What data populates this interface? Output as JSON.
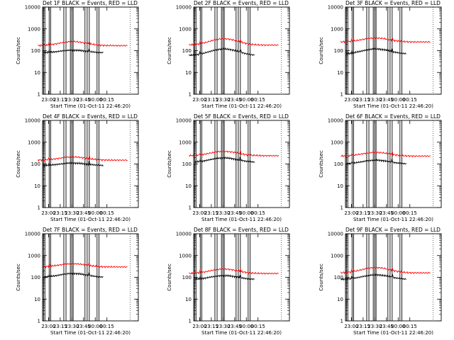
{
  "figure": {
    "colors": {
      "background": "#ffffff",
      "events": "#000000",
      "lld": "#ff0000",
      "axis": "#000000"
    }
  },
  "chart_data": [
    {
      "type": "line",
      "title": "Det 1F BLACK = Events, RED = LLD",
      "ylabel": "Counts/sec",
      "xlabel": "Start Time (01-Oct-11 22:46:20)",
      "x_ticks": [
        "23:00",
        "23:15",
        "23:30",
        "23:45",
        "00:00",
        "00:15"
      ],
      "y_ticks": [
        "1",
        "10",
        "100",
        "1000",
        "10000"
      ],
      "y_scale": "log",
      "ylim": [
        1,
        10000
      ],
      "grid": false,
      "series": [
        {
          "name": "Events",
          "color": "#000000",
          "start_min": 7.5,
          "end_min": 84,
          "base": 80,
          "peak": 105
        },
        {
          "name": "LLD",
          "color": "#ff0000",
          "start_min": 0,
          "end_min": 115,
          "base": 170,
          "peak": 260
        }
      ]
    },
    {
      "type": "line",
      "title": "Det 2F BLACK = Events, RED = LLD",
      "ylabel": "Counts/sec",
      "xlabel": "Start Time (01-Oct-11 22:46:20)",
      "x_ticks": [
        "23:00",
        "23:15",
        "23:30",
        "23:45",
        "00:00",
        "00:15"
      ],
      "y_ticks": [
        "1",
        "10",
        "100",
        "1000",
        "10000"
      ],
      "y_scale": "log",
      "ylim": [
        1,
        10000
      ],
      "grid": false,
      "series": [
        {
          "name": "Events",
          "color": "#000000",
          "start_min": 0,
          "end_min": 84,
          "base": 60,
          "peak": 120
        },
        {
          "name": "LLD",
          "color": "#ff0000",
          "start_min": 0,
          "end_min": 115,
          "base": 180,
          "peak": 350
        }
      ]
    },
    {
      "type": "line",
      "title": "Det 3F BLACK = Events, RED = LLD",
      "ylabel": "Counts/sec",
      "xlabel": "Start Time (01-Oct-11 22:46:20)",
      "x_ticks": [
        "23:00",
        "23:15",
        "23:30",
        "23:45",
        "00:00",
        "00:15"
      ],
      "y_ticks": [
        "1",
        "10",
        "100",
        "1000",
        "10000"
      ],
      "y_scale": "log",
      "ylim": [
        1,
        10000
      ],
      "grid": false,
      "series": [
        {
          "name": "Events",
          "color": "#000000",
          "start_min": 7.5,
          "end_min": 84,
          "base": 70,
          "peak": 120
        },
        {
          "name": "LLD",
          "color": "#ff0000",
          "start_min": 0,
          "end_min": 115,
          "base": 250,
          "peak": 380
        }
      ]
    },
    {
      "type": "line",
      "title": "Det 4F BLACK = Events, RED = LLD",
      "ylabel": "Counts/sec",
      "xlabel": "Start Time (01-Oct-11 22:46:20)",
      "x_ticks": [
        "23:00",
        "23:15",
        "23:30",
        "23:45",
        "00:00",
        "00:15"
      ],
      "y_ticks": [
        "1",
        "10",
        "100",
        "1000",
        "10000"
      ],
      "y_scale": "log",
      "ylim": [
        1,
        10000
      ],
      "grid": false,
      "series": [
        {
          "name": "Events",
          "color": "#000000",
          "start_min": 7.5,
          "end_min": 84,
          "base": 85,
          "peak": 110
        },
        {
          "name": "LLD",
          "color": "#ff0000",
          "start_min": 0,
          "end_min": 115,
          "base": 150,
          "peak": 210
        }
      ]
    },
    {
      "type": "line",
      "title": "Det 5F BLACK = Events, RED = LLD",
      "ylabel": "Counts/sec",
      "xlabel": "Start Time (01-Oct-11 22:46:20)",
      "x_ticks": [
        "23:00",
        "23:15",
        "23:30",
        "23:45",
        "00:00",
        "00:15"
      ],
      "y_ticks": [
        "1",
        "10",
        "100",
        "1000",
        "10000"
      ],
      "y_scale": "log",
      "ylim": [
        1,
        10000
      ],
      "grid": false,
      "series": [
        {
          "name": "Events",
          "color": "#000000",
          "start_min": 7.5,
          "end_min": 84,
          "base": 120,
          "peak": 190
        },
        {
          "name": "LLD",
          "color": "#ff0000",
          "start_min": 0,
          "end_min": 115,
          "base": 240,
          "peak": 380
        }
      ]
    },
    {
      "type": "line",
      "title": "Det 6F BLACK = Events, RED = LLD",
      "ylabel": "Counts/sec",
      "xlabel": "Start Time (01-Oct-11 22:46:20)",
      "x_ticks": [
        "23:00",
        "23:15",
        "23:30",
        "23:45",
        "00:00",
        "00:15"
      ],
      "y_ticks": [
        "1",
        "10",
        "100",
        "1000",
        "10000"
      ],
      "y_scale": "log",
      "ylim": [
        1,
        10000
      ],
      "grid": false,
      "series": [
        {
          "name": "Events",
          "color": "#000000",
          "start_min": 7.5,
          "end_min": 84,
          "base": 100,
          "peak": 150
        },
        {
          "name": "LLD",
          "color": "#ff0000",
          "start_min": 0,
          "end_min": 115,
          "base": 230,
          "peak": 340
        }
      ]
    },
    {
      "type": "line",
      "title": "Det 7F BLACK = Events, RED = LLD",
      "ylabel": "Counts/sec",
      "xlabel": "Start Time (01-Oct-11 22:46:20)",
      "x_ticks": [
        "23:00",
        "23:15",
        "23:30",
        "23:45",
        "00:00",
        "00:15"
      ],
      "y_ticks": [
        "1",
        "10",
        "100",
        "1000",
        "10000"
      ],
      "y_scale": "log",
      "ylim": [
        1,
        10000
      ],
      "grid": false,
      "series": [
        {
          "name": "Events",
          "color": "#000000",
          "start_min": 7.5,
          "end_min": 84,
          "base": 100,
          "peak": 150
        },
        {
          "name": "LLD",
          "color": "#ff0000",
          "start_min": 7.5,
          "end_min": 115,
          "base": 300,
          "peak": 420
        }
      ]
    },
    {
      "type": "line",
      "title": "Det 8F BLACK = Events, RED = LLD",
      "ylabel": "Counts/sec",
      "xlabel": "Start Time (01-Oct-11 22:46:20)",
      "x_ticks": [
        "23:00",
        "23:15",
        "23:30",
        "23:45",
        "00:00",
        "00:15"
      ],
      "y_ticks": [
        "1",
        "10",
        "100",
        "1000",
        "10000"
      ],
      "y_scale": "log",
      "ylim": [
        1,
        10000
      ],
      "grid": false,
      "series": [
        {
          "name": "Events",
          "color": "#000000",
          "start_min": 7.5,
          "end_min": 84,
          "base": 80,
          "peak": 120
        },
        {
          "name": "LLD",
          "color": "#ff0000",
          "start_min": 0,
          "end_min": 115,
          "base": 150,
          "peak": 240
        }
      ]
    },
    {
      "type": "line",
      "title": "Det 9F BLACK = Events, RED = LLD",
      "ylabel": "Counts/sec",
      "xlabel": "Start Time (01-Oct-11 22:46:20)",
      "x_ticks": [
        "23:00",
        "23:15",
        "23:30",
        "23:45",
        "00:00",
        "00:15"
      ],
      "y_ticks": [
        "1",
        "10",
        "100",
        "1000",
        "10000"
      ],
      "y_scale": "log",
      "ylim": [
        1,
        10000
      ],
      "grid": false,
      "series": [
        {
          "name": "Events",
          "color": "#000000",
          "start_min": 0,
          "end_min": 84,
          "base": 80,
          "peak": 130
        },
        {
          "name": "LLD",
          "color": "#ff0000",
          "start_min": 0,
          "end_min": 115,
          "base": 160,
          "peak": 280
        }
      ]
    }
  ]
}
